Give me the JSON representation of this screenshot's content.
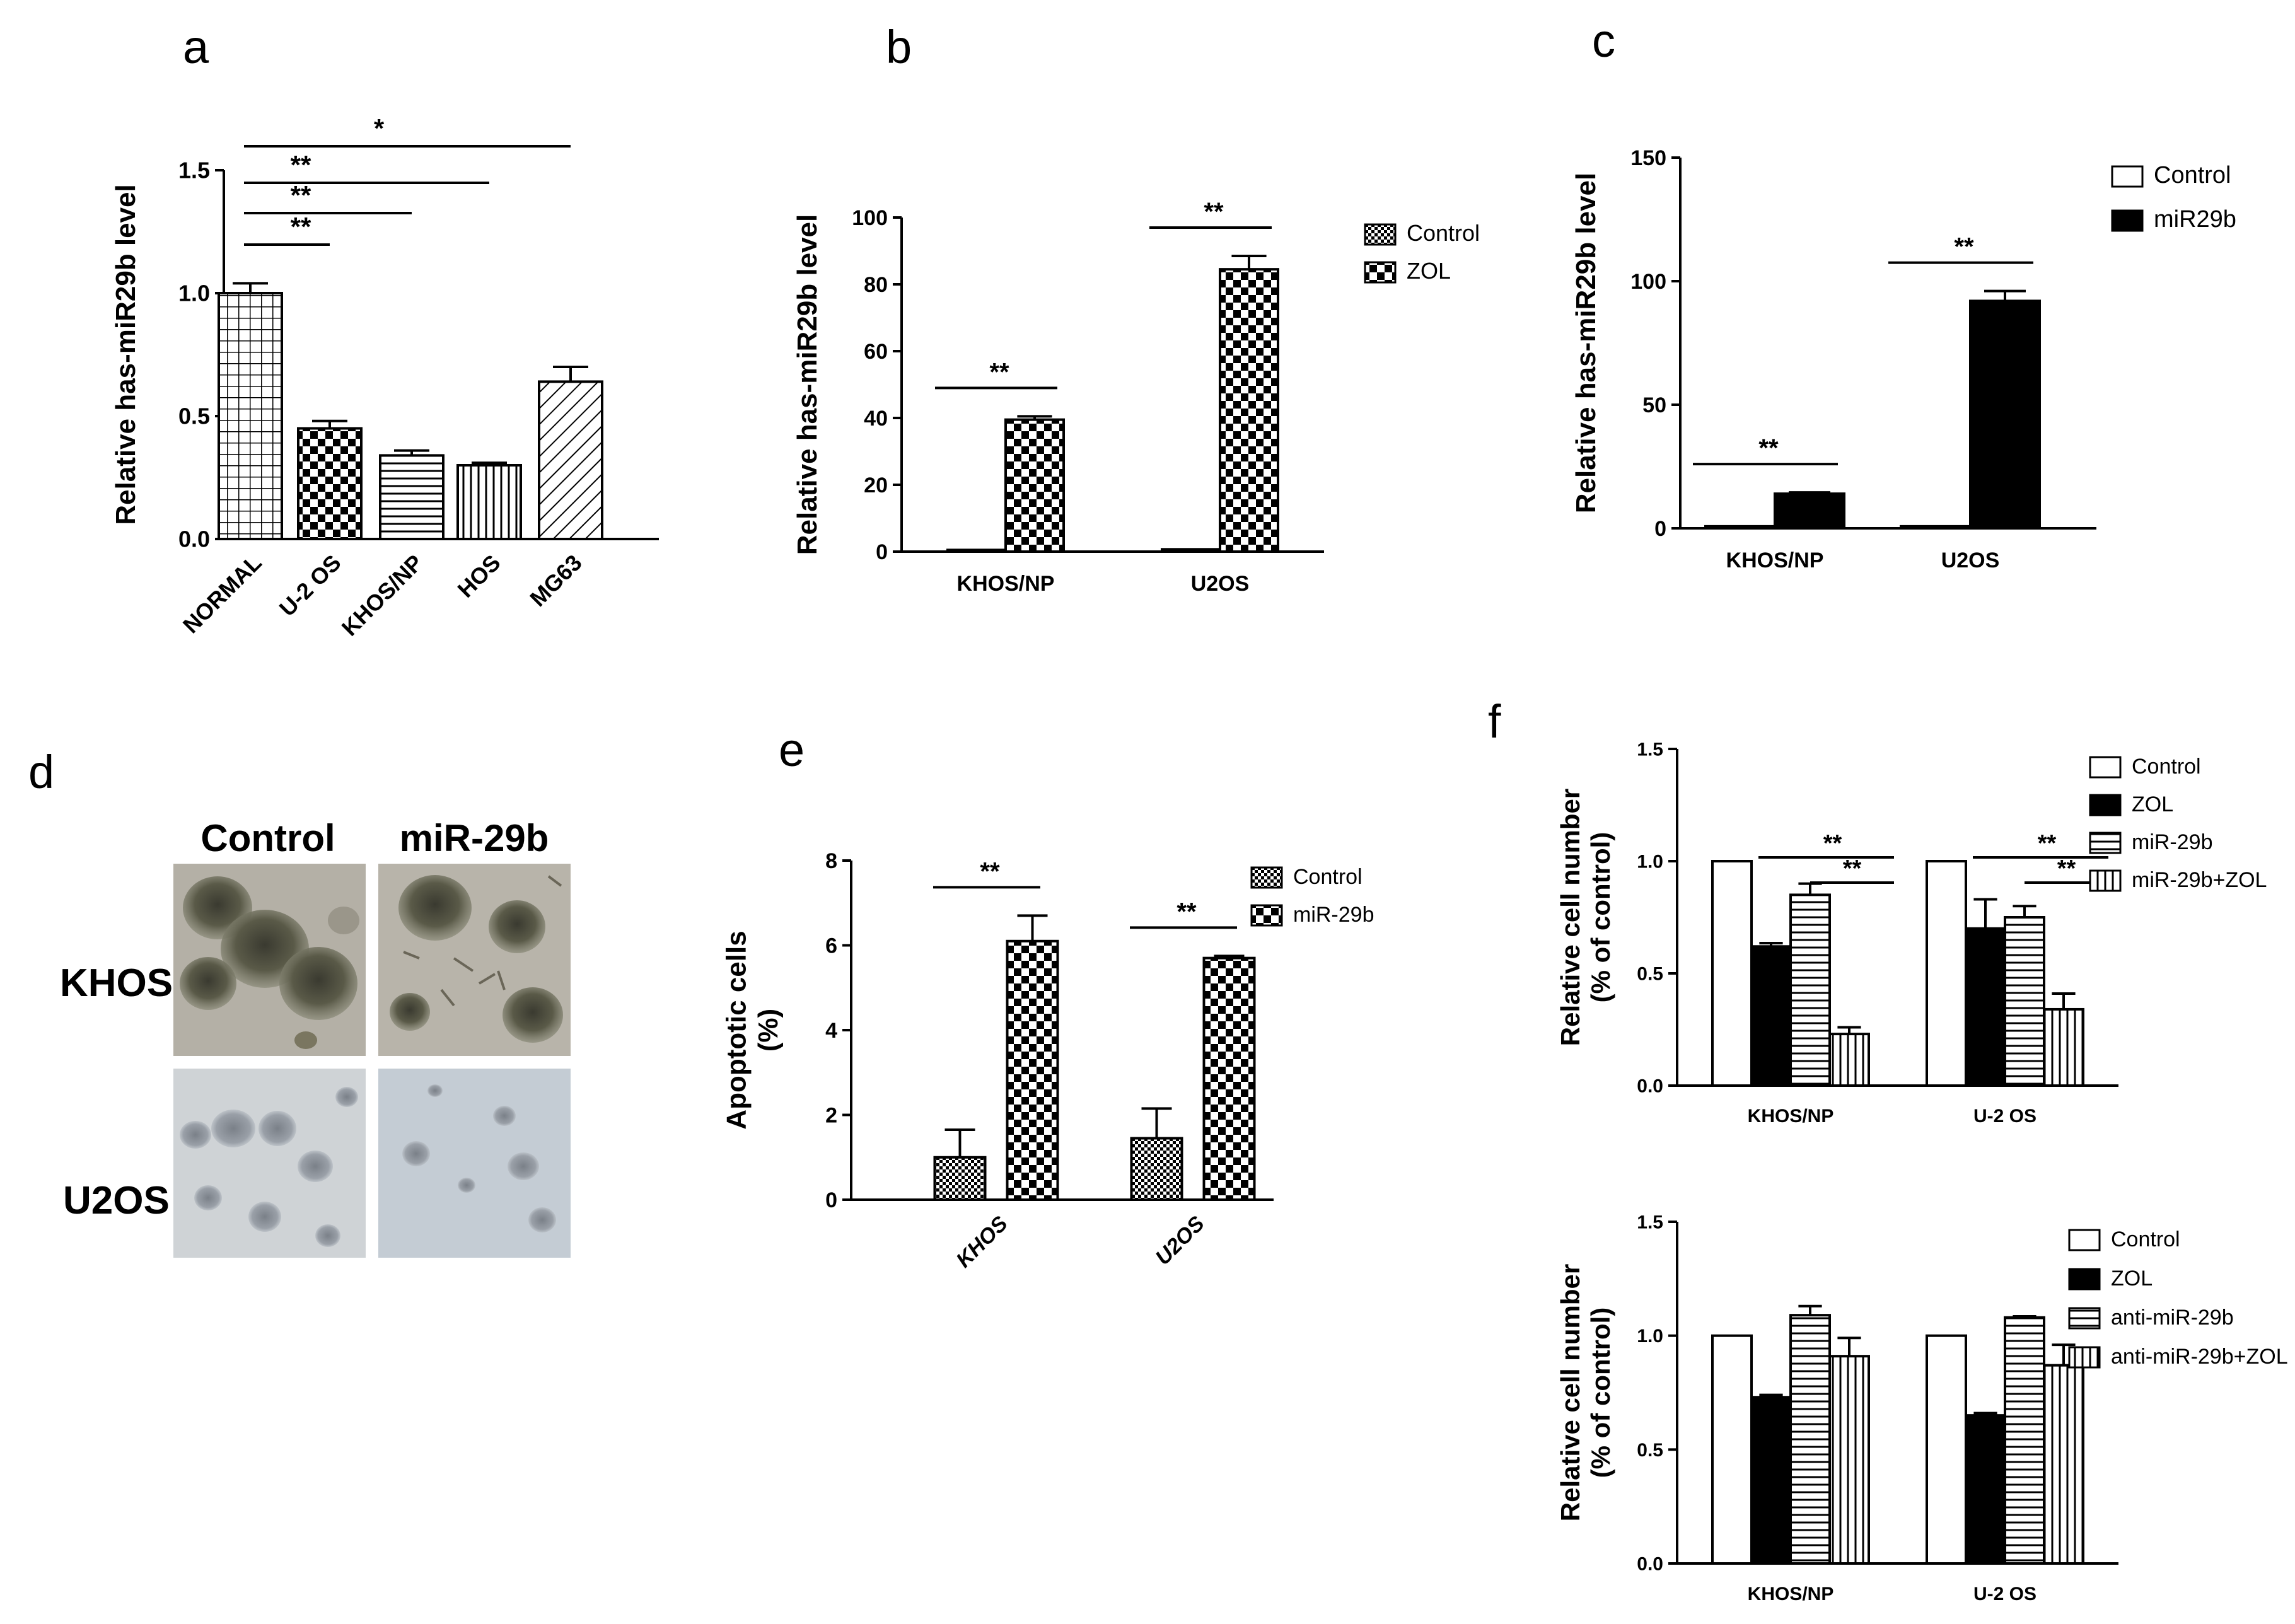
{
  "figure": {
    "panel_letters": [
      "a",
      "b",
      "c",
      "d",
      "e",
      "f"
    ]
  },
  "colors": {
    "ink": "#000000",
    "background": "#ffffff"
  },
  "chart_data": [
    {
      "panel": "a",
      "type": "bar",
      "categories": [
        "NORMAL",
        "U-2 OS",
        "KHOS/NP",
        "HOS",
        "MG63"
      ],
      "values": [
        1.0,
        0.45,
        0.34,
        0.3,
        0.64
      ],
      "errors": [
        0.04,
        0.03,
        0.02,
        0.01,
        0.06
      ],
      "patterns": [
        "grid",
        "checker",
        "hlines",
        "vlines",
        "diag"
      ],
      "ylabel": "Relative has-miR29b level",
      "ylim": [
        0,
        1.5
      ],
      "yticks": [
        0,
        0.5,
        1.0,
        1.5
      ],
      "ytick_labels": [
        "0.0",
        "0.5",
        "1.0",
        "1.5"
      ],
      "significance": [
        {
          "label": "**",
          "from": "NORMAL",
          "to": "U-2 OS"
        },
        {
          "label": "**",
          "from": "NORMAL",
          "to": "KHOS/NP"
        },
        {
          "label": "**",
          "from": "NORMAL",
          "to": "HOS"
        },
        {
          "label": "*",
          "from": "NORMAL",
          "to": "MG63"
        }
      ]
    },
    {
      "panel": "b",
      "type": "bar",
      "categories": [
        "KHOS/NP",
        "U2OS"
      ],
      "series": [
        {
          "name": "Control",
          "values": [
            0.5,
            0.7
          ],
          "errors": [
            0,
            0
          ],
          "pattern": "dense-checker"
        },
        {
          "name": "ZOL",
          "values": [
            39.5,
            84.5
          ],
          "errors": [
            1,
            4
          ],
          "pattern": "checker"
        }
      ],
      "ylabel": "Relative has-miR29b level",
      "ylim": [
        0,
        100
      ],
      "yticks": [
        0,
        20,
        40,
        60,
        80,
        100
      ],
      "ytick_labels": [
        "0",
        "20",
        "40",
        "60",
        "80",
        "100"
      ],
      "significance": [
        {
          "label": "**",
          "category": "KHOS/NP"
        },
        {
          "label": "**",
          "category": "U2OS"
        }
      ],
      "legend_position": "top-right"
    },
    {
      "panel": "c",
      "type": "bar",
      "categories": [
        "KHOS/NP",
        "U2OS"
      ],
      "series": [
        {
          "name": "Control",
          "values": [
            0.8,
            0.8
          ],
          "errors": [
            0,
            0
          ],
          "pattern": "white"
        },
        {
          "name": "miR29b",
          "values": [
            14,
            92
          ],
          "errors": [
            0.5,
            4
          ],
          "pattern": "black"
        }
      ],
      "ylabel": "Relative has-miR29b level",
      "ylim": [
        0,
        150
      ],
      "yticks": [
        0,
        50,
        100,
        150
      ],
      "ytick_labels": [
        "0",
        "50",
        "100",
        "150"
      ],
      "significance": [
        {
          "label": "**",
          "category": "KHOS/NP"
        },
        {
          "label": "**",
          "category": "U2OS"
        }
      ],
      "legend_position": "top-right"
    },
    {
      "panel": "e",
      "type": "bar",
      "categories": [
        "KHOS",
        "U2OS"
      ],
      "series": [
        {
          "name": "Control",
          "values": [
            1.0,
            1.45
          ],
          "errors": [
            0.65,
            0.7
          ],
          "pattern": "dense-checker"
        },
        {
          "name": "miR-29b",
          "values": [
            6.1,
            5.7
          ],
          "errors": [
            0.6,
            0.05
          ],
          "pattern": "checker"
        }
      ],
      "ylabel": "Apoptotic cells (%)",
      "ylim": [
        0,
        8
      ],
      "yticks": [
        0,
        2,
        4,
        6,
        8
      ],
      "ytick_labels": [
        "0",
        "2",
        "4",
        "6",
        "8"
      ],
      "significance": [
        {
          "label": "**",
          "category": "KHOS"
        },
        {
          "label": "**",
          "category": "U2OS"
        }
      ],
      "legend_position": "top-right"
    },
    {
      "panel": "f-top",
      "type": "bar",
      "categories": [
        "KHOS/NP",
        "U-2 OS"
      ],
      "series": [
        {
          "name": "Control",
          "values": [
            1.0,
            1.0
          ],
          "errors": [
            0,
            0
          ],
          "pattern": "white"
        },
        {
          "name": "ZOL",
          "values": [
            0.62,
            0.7
          ],
          "errors": [
            0.015,
            0.13
          ],
          "pattern": "black"
        },
        {
          "name": "miR-29b",
          "values": [
            0.85,
            0.75
          ],
          "errors": [
            0.05,
            0.05
          ],
          "pattern": "hlines"
        },
        {
          "name": "miR-29b+ZOL",
          "values": [
            0.23,
            0.34
          ],
          "errors": [
            0.03,
            0.07
          ],
          "pattern": "vlines"
        }
      ],
      "ylabel": "Relative cell number (% of control)",
      "ylim": [
        0,
        1.5
      ],
      "yticks": [
        0,
        0.5,
        1.0,
        1.5
      ],
      "ytick_labels": [
        "0.0",
        "0.5",
        "1.0",
        "1.5"
      ],
      "significance": [
        {
          "label": "**",
          "category": "KHOS/NP",
          "from_series": "ZOL",
          "to_series": "miR-29b+ZOL"
        },
        {
          "label": "**",
          "category": "KHOS/NP",
          "from_series": "miR-29b",
          "to_series": "miR-29b+ZOL"
        },
        {
          "label": "**",
          "category": "U-2 OS",
          "from_series": "ZOL",
          "to_series": "miR-29b+ZOL"
        },
        {
          "label": "**",
          "category": "U-2 OS",
          "from_series": "miR-29b",
          "to_series": "miR-29b+ZOL"
        }
      ],
      "legend_position": "top-right"
    },
    {
      "panel": "f-bottom",
      "type": "bar",
      "categories": [
        "KHOS/NP",
        "U-2 OS"
      ],
      "series": [
        {
          "name": "Control",
          "values": [
            1.0,
            1.0
          ],
          "errors": [
            0,
            0
          ],
          "pattern": "white"
        },
        {
          "name": "ZOL",
          "values": [
            0.73,
            0.65
          ],
          "errors": [
            0.01,
            0.01
          ],
          "pattern": "black"
        },
        {
          "name": "anti-miR-29b",
          "values": [
            1.09,
            1.08
          ],
          "errors": [
            0.04,
            0.005
          ],
          "pattern": "hlines"
        },
        {
          "name": "anti-miR-29b+ZOL",
          "values": [
            0.91,
            0.87
          ],
          "errors": [
            0.08,
            0.09
          ],
          "pattern": "vlines"
        }
      ],
      "ylabel": "Relative cell number (% of control)",
      "ylim": [
        0,
        1.5
      ],
      "yticks": [
        0,
        0.5,
        1.0,
        1.5
      ],
      "ytick_labels": [
        "0.0",
        "0.5",
        "1.0",
        "1.5"
      ],
      "significance": [],
      "legend_position": "top-right"
    }
  ],
  "micrographs": {
    "panel": "d",
    "column_labels": [
      "Control",
      "miR-29b"
    ],
    "row_labels": [
      "KHOS",
      "U2OS"
    ]
  }
}
